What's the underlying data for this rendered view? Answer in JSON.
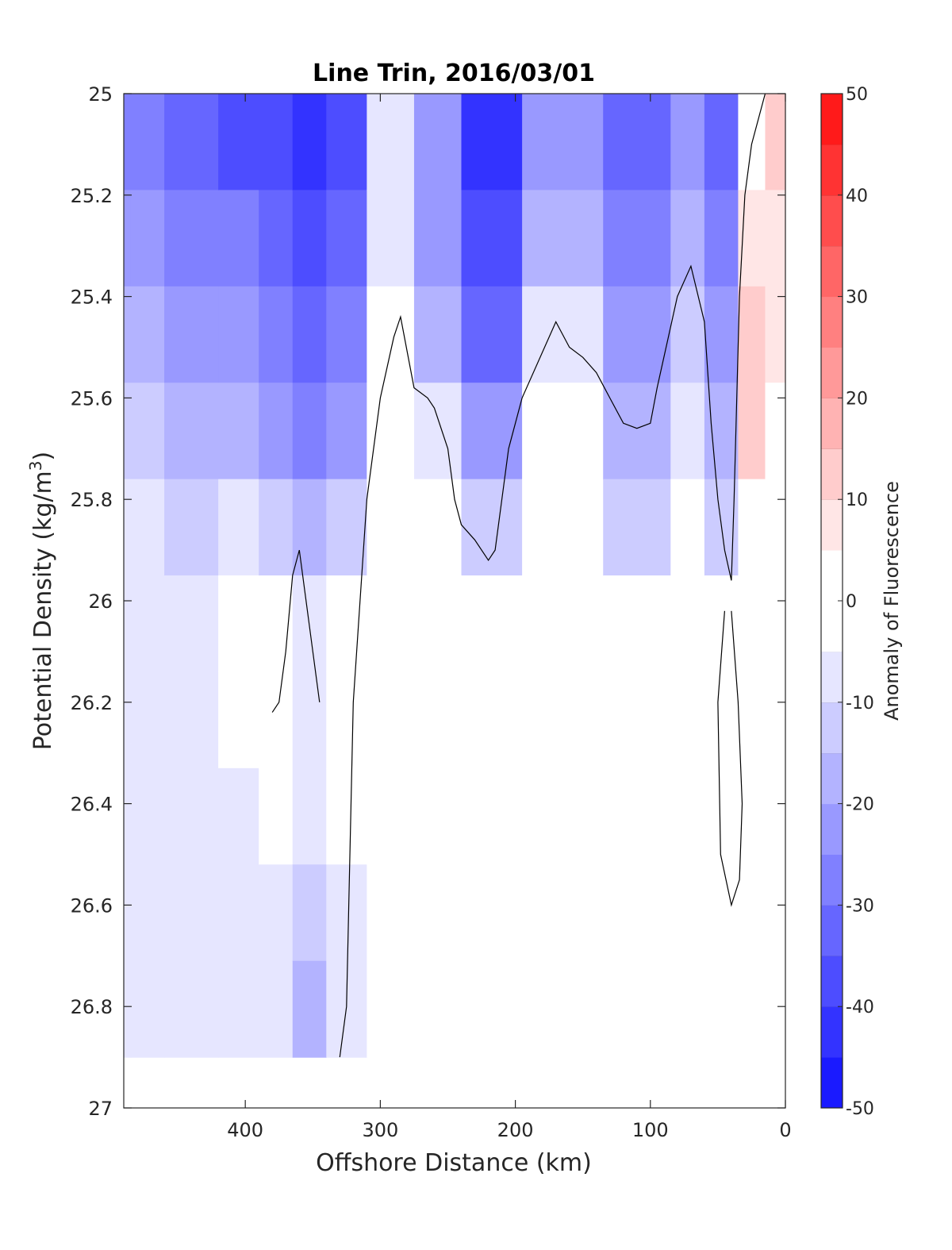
{
  "chart_data": {
    "type": "contour",
    "title": "Line Trin, 2016/03/01",
    "xlabel": "Offshore Distance (km)",
    "ylabel": {
      "main": "Potential Density (kg/m",
      "superscript": "3",
      "suffix": ")"
    },
    "xlim": [
      490,
      0
    ],
    "ylim": [
      25,
      27
    ],
    "x_reversed": true,
    "y_reversed": true,
    "xticks": [
      400,
      300,
      200,
      100,
      0
    ],
    "xtick_labels": [
      "400",
      "300",
      "200",
      "100",
      "0"
    ],
    "yticks": [
      25,
      25.2,
      25.4,
      25.6,
      25.8,
      26,
      26.2,
      26.4,
      26.6,
      26.8,
      27
    ],
    "ytick_labels": [
      "25",
      "25.2",
      "25.4",
      "25.6",
      "25.8",
      "26",
      "26.2",
      "26.4",
      "26.6",
      "26.8",
      "27"
    ],
    "grid": false,
    "colorbar": {
      "label": "Anomaly of Fluorescence",
      "range": [
        -50,
        50
      ],
      "levels": [
        -50,
        -45,
        -40,
        -35,
        -30,
        -25,
        -20,
        -15,
        -10,
        -5,
        5,
        10,
        15,
        20,
        25,
        30,
        35,
        40,
        45,
        50
      ],
      "colors": [
        "#0000ff",
        "#1a1aff",
        "#3333ff",
        "#4d4dff",
        "#6666ff",
        "#8080ff",
        "#9999ff",
        "#b3b3ff",
        "#ccccff",
        "#e6e6ff",
        "#ffffff",
        "#ffe6e6",
        "#ffcccc",
        "#ffb3b3",
        "#ff9999",
        "#ff8080",
        "#ff6666",
        "#ff4d4d",
        "#ff3333",
        "#ff1a1a",
        "#ff0000"
      ],
      "ticks": [
        -50,
        -40,
        -30,
        -20,
        -10,
        0,
        10,
        20,
        30,
        40,
        50
      ],
      "tick_labels": [
        "-50",
        "-40",
        "-30",
        "-20",
        "-10",
        "0",
        "10",
        "20",
        "30",
        "40",
        "50"
      ]
    },
    "data_extent": {
      "x": [
        490,
        0
      ],
      "y": [
        25,
        26.9
      ]
    },
    "columns": [
      {
        "x": 490,
        "levels": [
          -25,
          -20,
          -15,
          -10,
          -5,
          -5,
          -5,
          -5,
          -5,
          -5
        ]
      },
      {
        "x": 480,
        "levels": [
          -25,
          -20,
          -15,
          -10,
          -5,
          -5,
          -5,
          -5,
          -5,
          -5
        ]
      },
      {
        "x": 440,
        "levels": [
          -30,
          -25,
          -20,
          -15,
          -10,
          -5,
          -5,
          -5,
          -5,
          -5
        ]
      },
      {
        "x": 400,
        "levels": [
          -35,
          -25,
          -20,
          -15,
          -5,
          0,
          0,
          -5,
          -5,
          -5
        ]
      },
      {
        "x": 380,
        "levels": [
          -35,
          -30,
          -25,
          -20,
          -10,
          0,
          0,
          0,
          -5,
          -5
        ]
      },
      {
        "x": 350,
        "levels": [
          -40,
          -35,
          -30,
          -25,
          -15,
          -5,
          -5,
          -5,
          -10,
          -15
        ]
      },
      {
        "x": 330,
        "levels": [
          -35,
          -30,
          -25,
          -20,
          -10,
          0,
          0,
          0,
          -5,
          -5
        ]
      },
      {
        "x": 290,
        "levels": [
          -5,
          -5,
          0,
          0,
          5,
          5,
          5,
          5,
          5,
          5
        ]
      },
      {
        "x": 260,
        "levels": [
          -20,
          -20,
          -15,
          -5,
          0,
          5,
          5,
          5,
          5,
          5
        ]
      },
      {
        "x": 220,
        "levels": [
          -40,
          -35,
          -30,
          -20,
          -10,
          0,
          0,
          0,
          0,
          0
        ]
      },
      {
        "x": 170,
        "levels": [
          -20,
          -15,
          -5,
          0,
          0,
          0,
          0,
          0,
          5,
          0
        ]
      },
      {
        "x": 100,
        "levels": [
          -30,
          -25,
          -20,
          -15,
          -10,
          0,
          0,
          0,
          0,
          0
        ]
      },
      {
        "x": 70,
        "levels": [
          -20,
          -15,
          -10,
          -5,
          0,
          0,
          0,
          0,
          5,
          0
        ]
      },
      {
        "x": 50,
        "levels": [
          -30,
          -25,
          -20,
          -15,
          -10,
          0,
          0,
          0,
          0,
          0
        ]
      },
      {
        "x": 20,
        "levels": [
          5,
          10,
          15,
          15,
          5,
          0,
          0,
          0,
          0,
          0
        ]
      },
      {
        "x": 10,
        "levels": [
          15,
          10,
          10,
          5,
          0,
          0,
          0,
          0,
          0,
          0
        ]
      }
    ],
    "zero_contours": [
      {
        "x": [
          330,
          325,
          320,
          310,
          300,
          290,
          285,
          275,
          265,
          260,
          250,
          245,
          240,
          230,
          220,
          215,
          205,
          195,
          170,
          160,
          150,
          140,
          130,
          120,
          110,
          100,
          95,
          80,
          70,
          60,
          55,
          50,
          45,
          40,
          38,
          36,
          34,
          30,
          25,
          15
        ],
        "y": [
          26.9,
          26.8,
          26.2,
          25.8,
          25.6,
          25.48,
          25.44,
          25.58,
          25.6,
          25.62,
          25.7,
          25.8,
          25.85,
          25.88,
          25.92,
          25.9,
          25.7,
          25.6,
          25.45,
          25.5,
          25.52,
          25.55,
          25.6,
          25.65,
          25.66,
          25.65,
          25.58,
          25.4,
          25.34,
          25.45,
          25.65,
          25.8,
          25.9,
          25.96,
          25.8,
          25.6,
          25.4,
          25.2,
          25.1,
          25.0
        ]
      },
      {
        "x": [
          380,
          375,
          370,
          365,
          360,
          355,
          350,
          345
        ],
        "y": [
          26.22,
          26.2,
          26.1,
          25.95,
          25.9,
          26.0,
          26.1,
          26.2
        ]
      },
      {
        "x": [
          40,
          35,
          32,
          34,
          40,
          48,
          50,
          45
        ],
        "y": [
          26.02,
          26.2,
          26.4,
          26.55,
          26.6,
          26.5,
          26.2,
          26.02
        ]
      }
    ]
  }
}
